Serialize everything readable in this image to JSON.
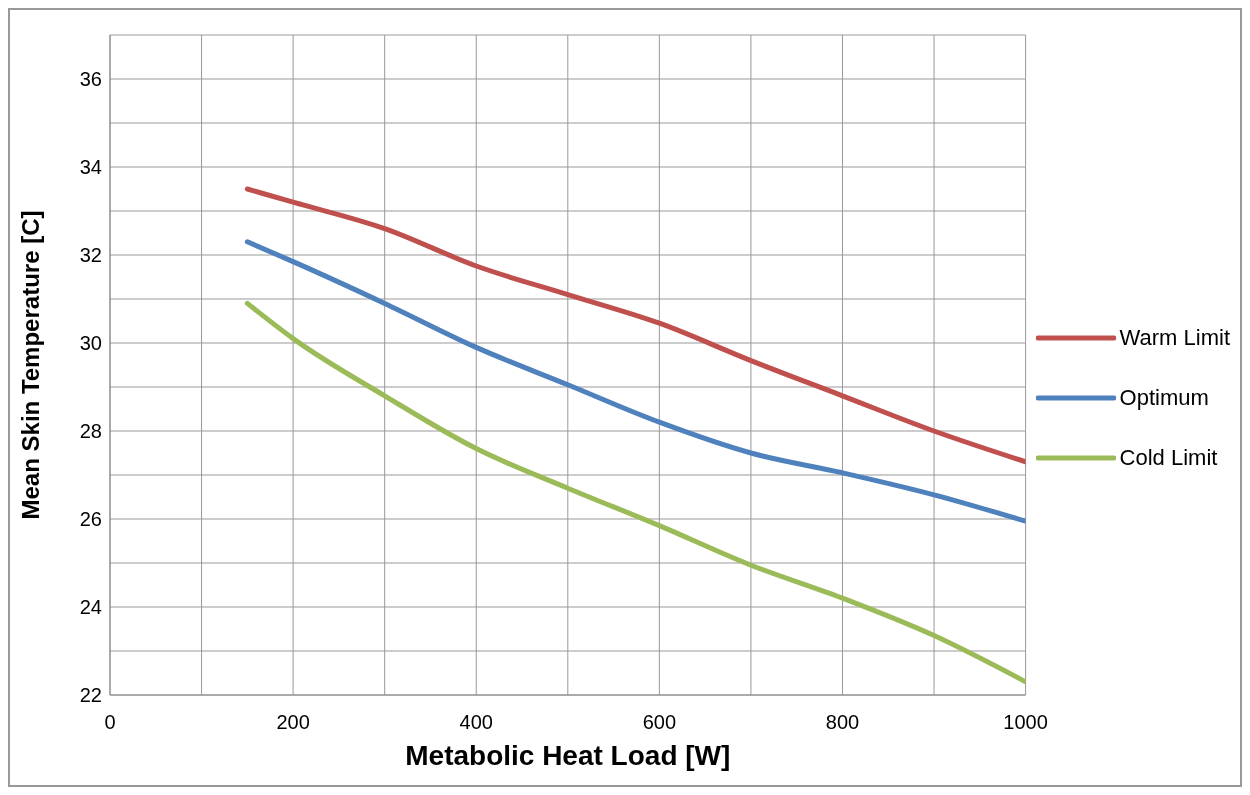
{
  "chart_data": {
    "type": "line",
    "xlabel": "Metabolic Heat Load [W]",
    "ylabel": "Mean Skin Temperature [C]",
    "x": [
      150,
      200,
      300,
      400,
      500,
      600,
      700,
      800,
      900,
      1000
    ],
    "series": [
      {
        "name": "Warm Limit",
        "color": "#c0504d",
        "values": [
          33.5,
          33.2,
          32.6,
          31.75,
          31.1,
          30.45,
          29.6,
          28.8,
          28.0,
          27.3
        ]
      },
      {
        "name": "Optimum",
        "color": "#4f81bd",
        "values": [
          32.3,
          31.85,
          30.9,
          29.9,
          29.05,
          28.2,
          27.5,
          27.05,
          26.55,
          25.95
        ]
      },
      {
        "name": "Cold Limit",
        "color": "#9bbb59",
        "values": [
          30.9,
          30.1,
          28.8,
          27.6,
          26.7,
          25.85,
          24.95,
          24.2,
          23.35,
          22.3
        ]
      }
    ],
    "xlim": [
      0,
      1000
    ],
    "xticks": [
      0,
      {
        "value": 100,
        "label": null
      },
      200,
      {
        "value": 300,
        "label": null
      },
      400,
      {
        "value": 500,
        "label": null
      },
      600,
      {
        "value": 700,
        "label": null
      },
      800,
      {
        "value": 900,
        "label": null
      },
      1000
    ],
    "ylim": [
      22,
      37
    ],
    "yticks": [
      22,
      {
        "value": 23,
        "label": null
      },
      24,
      {
        "value": 25,
        "label": null
      },
      26,
      {
        "value": 27,
        "label": null
      },
      28,
      {
        "value": 29,
        "label": null
      },
      30,
      {
        "value": 31,
        "label": null
      },
      32,
      {
        "value": 33,
        "label": null
      },
      34,
      {
        "value": 35,
        "label": null
      },
      36,
      {
        "value": 37,
        "label": null
      }
    ],
    "grid": true,
    "legend": "right",
    "marker": "none",
    "line_style": "solid"
  }
}
